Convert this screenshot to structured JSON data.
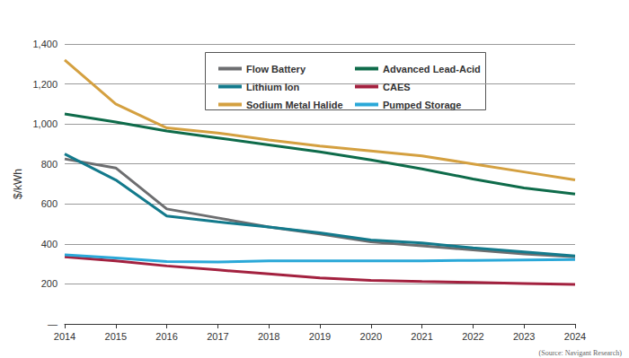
{
  "chart_data": {
    "type": "line",
    "y_label": "$/kWh",
    "annotation": "(Source: Navigant Research)",
    "categories": [
      "2014",
      "2015",
      "2016",
      "2017",
      "2018",
      "2019",
      "2020",
      "2021",
      "2022",
      "2023",
      "2024"
    ],
    "series": [
      {
        "name": "Flow Battery",
        "color": "#6d6e70",
        "values": [
          825,
          780,
          575,
          530,
          485,
          450,
          410,
          390,
          370,
          350,
          335
        ]
      },
      {
        "name": "Advanced Lead-Acid",
        "color": "#0e6b4a",
        "values": [
          1050,
          1010,
          965,
          930,
          895,
          860,
          820,
          775,
          725,
          680,
          650
        ]
      },
      {
        "name": "Lithium Ion",
        "color": "#137a8c",
        "values": [
          850,
          720,
          540,
          510,
          485,
          455,
          420,
          405,
          380,
          360,
          340
        ]
      },
      {
        "name": "CAES",
        "color": "#a3213f",
        "values": [
          335,
          315,
          290,
          270,
          250,
          230,
          218,
          212,
          207,
          202,
          197
        ]
      },
      {
        "name": "Sodium Metal Halide",
        "color": "#d4a040",
        "values": [
          1320,
          1100,
          980,
          955,
          920,
          890,
          865,
          840,
          800,
          760,
          720
        ]
      },
      {
        "name": "Pumped Storage",
        "color": "#2aa8d8",
        "values": [
          345,
          330,
          312,
          310,
          315,
          315,
          315,
          315,
          318,
          320,
          322
        ]
      }
    ],
    "ylim": [
      0,
      1400
    ],
    "yticks": [
      {
        "value": 0,
        "label": "—"
      },
      200,
      400,
      600,
      800,
      {
        "value": 1000,
        "label": "1,000"
      },
      {
        "value": 1200,
        "label": "1,200"
      },
      {
        "value": 1400,
        "label": "1,400"
      }
    ],
    "grid": true,
    "legend": "top"
  }
}
